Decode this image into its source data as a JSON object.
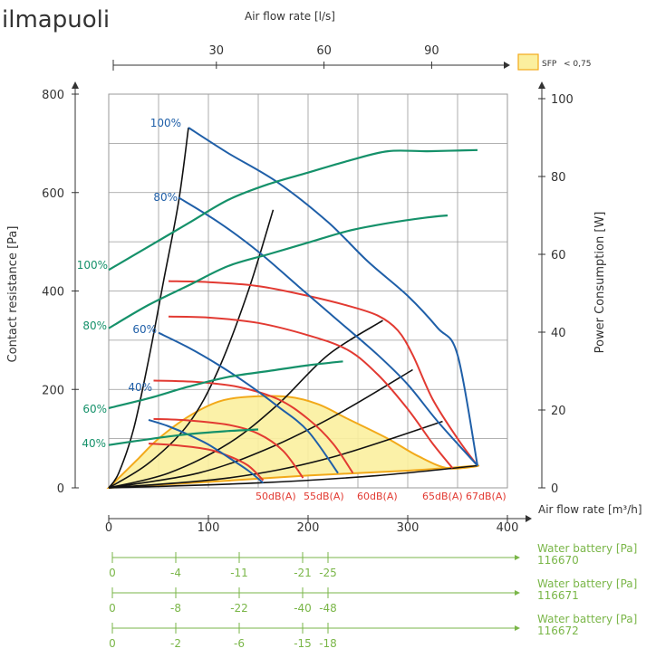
{
  "header": {
    "title": "ilmapuoli"
  },
  "colors": {
    "blue": "#1f5fa8",
    "red": "#e23a32",
    "green": "#15916a",
    "black": "#111111",
    "sfp_fill": "#fbef9e",
    "sfp_edge": "#f2a91a",
    "water": "#7ab648",
    "grid": "#999999"
  },
  "chart_data": {
    "type": "line",
    "x_axis": {
      "label": "Air flow rate [m³/h]",
      "range": [
        0,
        400
      ],
      "ticks": [
        0,
        100,
        200,
        300,
        400
      ]
    },
    "x_top_axis": {
      "label": "Air flow rate [l/s]",
      "ticks": [
        30,
        60,
        90
      ]
    },
    "y_left_axis": {
      "label": "Contact resistance [Pa]",
      "range": [
        0,
        800
      ],
      "ticks": [
        0,
        200,
        400,
        600,
        800
      ]
    },
    "y_right_axis": {
      "label": "Power Consumption [W]",
      "range": [
        0,
        100
      ],
      "ticks": [
        0,
        20,
        40,
        60,
        80,
        100
      ]
    },
    "legend": {
      "label": "SFP",
      "cond": "< 0,75",
      "position": "top-right"
    },
    "sfp_region": [
      [
        0,
        0
      ],
      [
        10,
        20
      ],
      [
        30,
        60
      ],
      [
        50,
        100
      ],
      [
        80,
        145
      ],
      [
        110,
        175
      ],
      [
        140,
        185
      ],
      [
        180,
        185
      ],
      [
        210,
        170
      ],
      [
        240,
        140
      ],
      [
        280,
        100
      ],
      [
        310,
        65
      ],
      [
        340,
        40
      ],
      [
        370,
        45
      ],
      [
        300,
        35
      ],
      [
        200,
        25
      ],
      [
        100,
        12
      ],
      [
        0,
        0
      ]
    ],
    "pressure_curves": [
      {
        "label": "100%",
        "points": [
          [
            80,
            732
          ],
          [
            120,
            680
          ],
          [
            170,
            620
          ],
          [
            220,
            540
          ],
          [
            260,
            460
          ],
          [
            300,
            390
          ],
          [
            330,
            325
          ],
          [
            350,
            270
          ],
          [
            370,
            45
          ]
        ]
      },
      {
        "label": "80%",
        "points": [
          [
            70,
            590
          ],
          [
            110,
            540
          ],
          [
            150,
            480
          ],
          [
            190,
            410
          ],
          [
            230,
            340
          ],
          [
            270,
            270
          ],
          [
            300,
            210
          ],
          [
            330,
            135
          ],
          [
            370,
            45
          ]
        ]
      },
      {
        "label": "60%",
        "points": [
          [
            50,
            315
          ],
          [
            80,
            285
          ],
          [
            110,
            250
          ],
          [
            140,
            210
          ],
          [
            170,
            165
          ],
          [
            200,
            115
          ],
          [
            230,
            30
          ]
        ]
      },
      {
        "label": "40%",
        "points": [
          [
            40,
            138
          ],
          [
            60,
            125
          ],
          [
            80,
            108
          ],
          [
            100,
            88
          ],
          [
            120,
            62
          ],
          [
            140,
            35
          ],
          [
            155,
            10
          ]
        ]
      }
    ],
    "sound_curves": [
      {
        "label": "50dB(A)",
        "points": [
          [
            40,
            90
          ],
          [
            70,
            86
          ],
          [
            100,
            78
          ],
          [
            120,
            65
          ],
          [
            140,
            45
          ],
          [
            155,
            15
          ]
        ]
      },
      {
        "label": "55dB(A)",
        "points": [
          [
            45,
            140
          ],
          [
            80,
            137
          ],
          [
            120,
            128
          ],
          [
            150,
            110
          ],
          [
            175,
            75
          ],
          [
            195,
            20
          ]
        ]
      },
      {
        "label": "60dB(A)",
        "points": [
          [
            45,
            218
          ],
          [
            90,
            215
          ],
          [
            130,
            205
          ],
          [
            170,
            180
          ],
          [
            200,
            140
          ],
          [
            225,
            90
          ],
          [
            245,
            30
          ]
        ]
      },
      {
        "label": "65dB(A)",
        "points": [
          [
            60,
            348
          ],
          [
            100,
            346
          ],
          [
            150,
            335
          ],
          [
            200,
            310
          ],
          [
            240,
            280
          ],
          [
            270,
            230
          ],
          [
            300,
            160
          ],
          [
            325,
            90
          ],
          [
            345,
            40
          ]
        ]
      },
      {
        "label": "67dB(A)",
        "points": [
          [
            60,
            420
          ],
          [
            100,
            418
          ],
          [
            150,
            410
          ],
          [
            200,
            390
          ],
          [
            240,
            370
          ],
          [
            270,
            350
          ],
          [
            290,
            320
          ],
          [
            305,
            270
          ],
          [
            325,
            180
          ],
          [
            350,
            100
          ],
          [
            370,
            45
          ]
        ]
      }
    ],
    "system_curves": [
      {
        "points": [
          [
            0,
            0
          ],
          [
            10,
            30
          ],
          [
            25,
            120
          ],
          [
            40,
            260
          ],
          [
            55,
            420
          ],
          [
            70,
            580
          ],
          [
            80,
            732
          ]
        ]
      },
      {
        "points": [
          [
            0,
            0
          ],
          [
            40,
            50
          ],
          [
            80,
            130
          ],
          [
            110,
            240
          ],
          [
            140,
            400
          ],
          [
            165,
            565
          ]
        ]
      },
      {
        "points": [
          [
            0,
            0
          ],
          [
            60,
            30
          ],
          [
            120,
            90
          ],
          [
            170,
            170
          ],
          [
            220,
            270
          ],
          [
            275,
            340
          ]
        ]
      },
      {
        "points": [
          [
            0,
            0
          ],
          [
            90,
            30
          ],
          [
            160,
            80
          ],
          [
            230,
            150
          ],
          [
            305,
            240
          ]
        ]
      },
      {
        "points": [
          [
            0,
            0
          ],
          [
            120,
            20
          ],
          [
            220,
            60
          ],
          [
            335,
            135
          ]
        ]
      },
      {
        "points": [
          [
            0,
            0
          ],
          [
            150,
            10
          ],
          [
            270,
            25
          ],
          [
            370,
            45
          ]
        ]
      }
    ],
    "power_curves": [
      {
        "label": "100%",
        "points": [
          [
            0,
            56
          ],
          [
            40,
            62
          ],
          [
            80,
            68
          ],
          [
            120,
            74
          ],
          [
            160,
            78
          ],
          [
            200,
            81
          ],
          [
            240,
            84
          ],
          [
            280,
            86.5
          ],
          [
            320,
            86.5
          ],
          [
            370,
            86.8
          ]
        ]
      },
      {
        "label": "80%",
        "points": [
          [
            0,
            41
          ],
          [
            40,
            47
          ],
          [
            80,
            52
          ],
          [
            120,
            57
          ],
          [
            160,
            60
          ],
          [
            200,
            63
          ],
          [
            240,
            66
          ],
          [
            280,
            68
          ],
          [
            320,
            69.5
          ],
          [
            340,
            70
          ]
        ]
      },
      {
        "label": "60%",
        "points": [
          [
            0,
            20.5
          ],
          [
            40,
            23
          ],
          [
            80,
            26
          ],
          [
            120,
            28.5
          ],
          [
            160,
            30
          ],
          [
            200,
            31.5
          ],
          [
            235,
            32.5
          ]
        ]
      },
      {
        "label": "40%",
        "points": [
          [
            0,
            11
          ],
          [
            40,
            12.5
          ],
          [
            80,
            13.8
          ],
          [
            120,
            14.6
          ],
          [
            150,
            15
          ]
        ]
      }
    ],
    "water_battery_scales": [
      {
        "label": "Water battery [Pa]",
        "code": "116670",
        "ticks": [
          {
            "x": 0,
            "label": "0"
          },
          {
            "x": 50,
            "label": "-4"
          },
          {
            "x": 100,
            "label": "-11"
          },
          {
            "x": 150,
            "label": "-21"
          },
          {
            "x": 170,
            "label": "-25"
          }
        ]
      },
      {
        "label": "Water battery [Pa]",
        "code": "116671",
        "ticks": [
          {
            "x": 0,
            "label": "0"
          },
          {
            "x": 50,
            "label": "-8"
          },
          {
            "x": 100,
            "label": "-22"
          },
          {
            "x": 150,
            "label": "-40"
          },
          {
            "x": 170,
            "label": "-48"
          }
        ]
      },
      {
        "label": "Water battery [Pa]",
        "code": "116672",
        "ticks": [
          {
            "x": 0,
            "label": "0"
          },
          {
            "x": 50,
            "label": "-2"
          },
          {
            "x": 100,
            "label": "-6"
          },
          {
            "x": 150,
            "label": "-15"
          },
          {
            "x": 170,
            "label": "-18"
          }
        ]
      }
    ]
  }
}
